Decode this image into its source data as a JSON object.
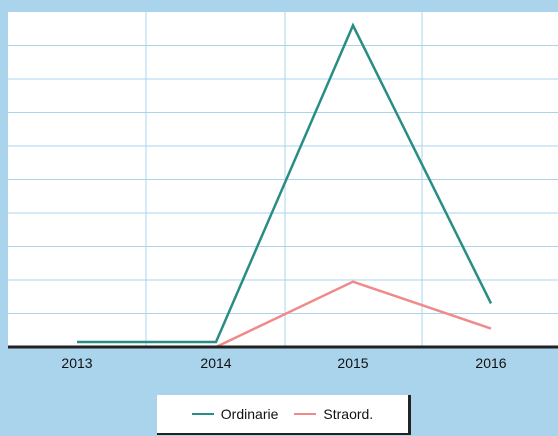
{
  "chart_data": {
    "type": "line",
    "categories": [
      "2013",
      "2014",
      "2015",
      "2016"
    ],
    "series": [
      {
        "name": "Ordinarie",
        "color": "#2a8d84",
        "values": [
          1.5,
          1.5,
          96,
          13
        ]
      },
      {
        "name": "Straord.",
        "color": "#f08a8a",
        "values": [
          0,
          0,
          19.5,
          5.5
        ]
      }
    ],
    "title": "",
    "xlabel": "",
    "ylabel": "",
    "ylim": [
      0,
      100
    ],
    "grid": true,
    "legend_position": "bottom-center",
    "colors": {
      "background": "#a9d4ec",
      "plot": "#ffffff",
      "grid": "#a9d4ec",
      "axis": "#222222"
    }
  }
}
